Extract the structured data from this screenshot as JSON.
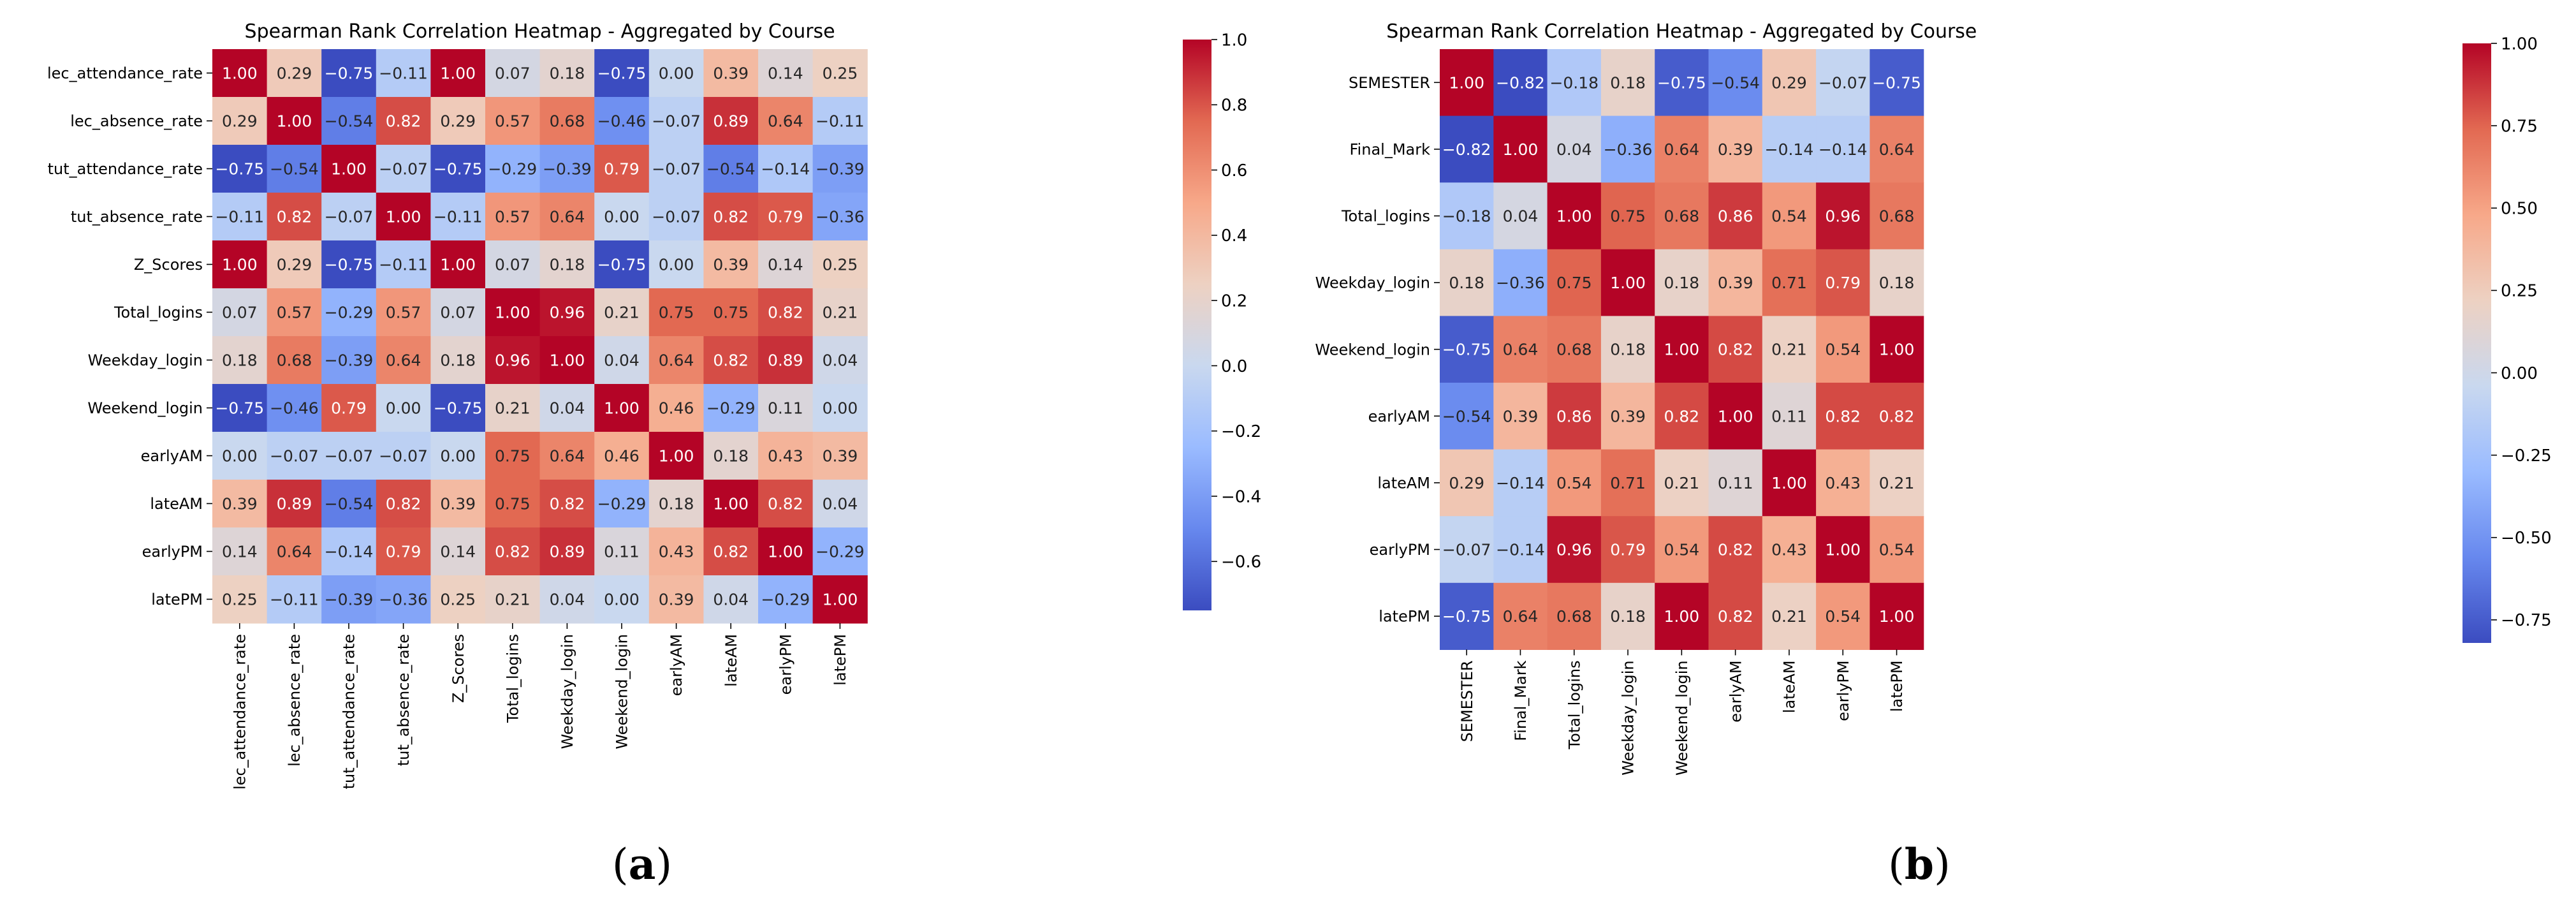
{
  "colormap": {
    "name": "coolwarm",
    "stops": [
      "#3b4cc0",
      "#6788ee",
      "#9abbff",
      "#c9d8ef",
      "#edd1c2",
      "#f7a889",
      "#e26952",
      "#b40426"
    ]
  },
  "panels": [
    {
      "label": "(a)",
      "chart_data": {
        "type": "heatmap",
        "title": "Spearman Rank Correlation Heatmap - Aggregated by Course",
        "x_labels": [
          "lec_attendance_rate",
          "lec_absence_rate",
          "tut_attendance_rate",
          "tut_absence_rate",
          "Z_Scores",
          "Total_logins",
          "Weekday_login",
          "Weekend_login",
          "earlyAM",
          "lateAM",
          "earlyPM",
          "latePM"
        ],
        "y_labels": [
          "lec_attendance_rate",
          "lec_absence_rate",
          "tut_attendance_rate",
          "tut_absence_rate",
          "Z_Scores",
          "Total_logins",
          "Weekday_login",
          "Weekend_login",
          "earlyAM",
          "lateAM",
          "earlyPM",
          "latePM"
        ],
        "values": [
          [
            1.0,
            0.29,
            -0.75,
            -0.11,
            1.0,
            0.07,
            0.18,
            -0.75,
            0.0,
            0.39,
            0.14,
            0.25
          ],
          [
            0.29,
            1.0,
            -0.54,
            0.82,
            0.29,
            0.57,
            0.68,
            -0.46,
            -0.07,
            0.89,
            0.64,
            -0.11
          ],
          [
            -0.75,
            -0.54,
            1.0,
            -0.07,
            -0.75,
            -0.29,
            -0.39,
            0.79,
            -0.07,
            -0.54,
            -0.14,
            -0.39
          ],
          [
            -0.11,
            0.82,
            -0.07,
            1.0,
            -0.11,
            0.57,
            0.64,
            0.0,
            -0.07,
            0.82,
            0.79,
            -0.36
          ],
          [
            1.0,
            0.29,
            -0.75,
            -0.11,
            1.0,
            0.07,
            0.18,
            -0.75,
            0.0,
            0.39,
            0.14,
            0.25
          ],
          [
            0.07,
            0.57,
            -0.29,
            0.57,
            0.07,
            1.0,
            0.96,
            0.21,
            0.75,
            0.75,
            0.82,
            0.21
          ],
          [
            0.18,
            0.68,
            -0.39,
            0.64,
            0.18,
            0.96,
            1.0,
            0.04,
            0.64,
            0.82,
            0.89,
            0.04
          ],
          [
            -0.75,
            -0.46,
            0.79,
            0.0,
            -0.75,
            0.21,
            0.04,
            1.0,
            0.46,
            -0.29,
            0.11,
            0.0
          ],
          [
            0.0,
            -0.07,
            -0.07,
            -0.07,
            0.0,
            0.75,
            0.64,
            0.46,
            1.0,
            0.18,
            0.43,
            0.39
          ],
          [
            0.39,
            0.89,
            -0.54,
            0.82,
            0.39,
            0.75,
            0.82,
            -0.29,
            0.18,
            1.0,
            0.82,
            0.04
          ],
          [
            0.14,
            0.64,
            -0.14,
            0.79,
            0.14,
            0.82,
            0.89,
            0.11,
            0.43,
            0.82,
            1.0,
            -0.29
          ],
          [
            0.25,
            -0.11,
            -0.39,
            -0.36,
            0.25,
            0.21,
            0.04,
            0.0,
            0.39,
            0.04,
            -0.29,
            1.0
          ]
        ],
        "colorbar": {
          "vmin": -0.75,
          "vmax": 1.0,
          "ticks": [
            -0.6,
            -0.4,
            -0.2,
            0.0,
            0.2,
            0.4,
            0.6,
            0.8,
            1.0
          ],
          "tick_labels": [
            "−0.6",
            "−0.4",
            "−0.2",
            "0.0",
            "0.2",
            "0.4",
            "0.6",
            "0.8",
            "1.0"
          ]
        }
      }
    },
    {
      "label": "(b)",
      "chart_data": {
        "type": "heatmap",
        "title": "Spearman Rank Correlation Heatmap - Aggregated by Course",
        "x_labels": [
          "SEMESTER",
          "Final_Mark",
          "Total_logins",
          "Weekday_login",
          "Weekend_login",
          "earlyAM",
          "lateAM",
          "earlyPM",
          "latePM"
        ],
        "y_labels": [
          "SEMESTER",
          "Final_Mark",
          "Total_logins",
          "Weekday_login",
          "Weekend_login",
          "earlyAM",
          "lateAM",
          "earlyPM",
          "latePM"
        ],
        "values": [
          [
            1.0,
            -0.82,
            -0.18,
            0.18,
            -0.75,
            -0.54,
            0.29,
            -0.07,
            -0.75
          ],
          [
            -0.82,
            1.0,
            0.04,
            -0.36,
            0.64,
            0.39,
            -0.14,
            -0.14,
            0.64
          ],
          [
            -0.18,
            0.04,
            1.0,
            0.75,
            0.68,
            0.86,
            0.54,
            0.96,
            0.68
          ],
          [
            0.18,
            -0.36,
            0.75,
            1.0,
            0.18,
            0.39,
            0.71,
            0.79,
            0.18
          ],
          [
            -0.75,
            0.64,
            0.68,
            0.18,
            1.0,
            0.82,
            0.21,
            0.54,
            1.0
          ],
          [
            -0.54,
            0.39,
            0.86,
            0.39,
            0.82,
            1.0,
            0.11,
            0.82,
            0.82
          ],
          [
            0.29,
            -0.14,
            0.54,
            0.71,
            0.21,
            0.11,
            1.0,
            0.43,
            0.21
          ],
          [
            -0.07,
            -0.14,
            0.96,
            0.79,
            0.54,
            0.82,
            0.43,
            1.0,
            0.54
          ],
          [
            -0.75,
            0.64,
            0.68,
            0.18,
            1.0,
            0.82,
            0.21,
            0.54,
            1.0
          ]
        ],
        "colorbar": {
          "vmin": -0.82,
          "vmax": 1.0,
          "ticks": [
            -0.75,
            -0.5,
            -0.25,
            0.0,
            0.25,
            0.5,
            0.75,
            1.0
          ],
          "tick_labels": [
            "−0.75",
            "−0.50",
            "−0.25",
            "0.00",
            "0.25",
            "0.50",
            "0.75",
            "1.00"
          ]
        }
      }
    }
  ]
}
